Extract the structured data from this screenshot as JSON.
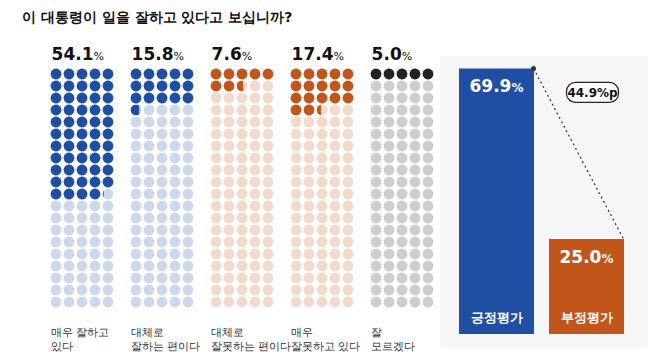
{
  "chart_data": [
    {
      "type": "waffle",
      "title": "이 대통령이 일을 잘하고 있다고 보십니까?",
      "categories": [
        "매우 잘하고\n있다",
        "대체로\n잘하는 편이다",
        "대체로\n잘못하는 편이다",
        "매우\n잘못하고 있다",
        "잘\n모르겠다"
      ],
      "values": [
        54.1,
        15.8,
        7.6,
        17.4,
        5.0
      ],
      "value_labels": [
        "54.1%",
        "15.8%",
        "7.6%",
        "17.4%",
        "5.0%"
      ],
      "colors": [
        "#1f4fa3",
        "#1f4fa3",
        "#c2561a",
        "#c2561a",
        "#222222"
      ],
      "ylim": [
        0,
        100
      ],
      "tick_labels": false,
      "data_labels": true
    },
    {
      "type": "bar",
      "categories": [
        "긍정평가",
        "부정평가"
      ],
      "values": [
        69.9,
        25.0
      ],
      "value_labels": [
        "69.9%",
        "25.0%"
      ],
      "colors": [
        "#1f4fa3",
        "#c2561a"
      ],
      "ylim": [
        0,
        80
      ],
      "tick_labels": false,
      "data_labels": true,
      "annotation": "44.9%p"
    }
  ]
}
